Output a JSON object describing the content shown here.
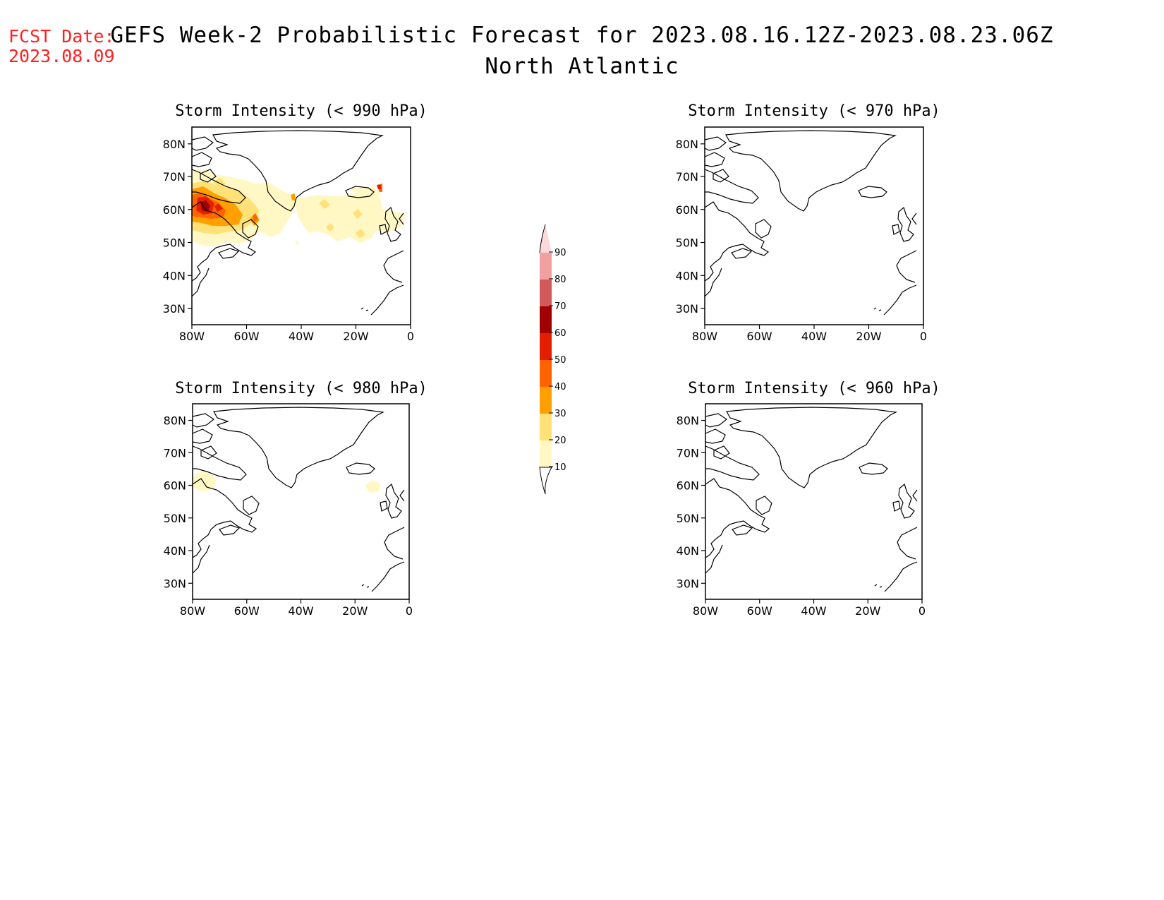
{
  "fcst_date": {
    "label": "FCST Date:",
    "value": "2023.08.09"
  },
  "title": {
    "line1": "GEFS Week-2 Probabilistic Forecast for 2023.08.16.12Z-2023.08.23.06Z",
    "line2": "North Atlantic"
  },
  "axes": {
    "lat_labels": [
      "80N",
      "70N",
      "60N",
      "50N",
      "40N",
      "30N"
    ],
    "lon_labels": [
      "80W",
      "60W",
      "40W",
      "20W",
      "0"
    ]
  },
  "panels": [
    {
      "id": "p990",
      "title": "Storm Intensity (< 990 hPa)"
    },
    {
      "id": "p980",
      "title": "Storm Intensity (< 980 hPa)"
    },
    {
      "id": "p970",
      "title": "Storm Intensity (< 970 hPa)"
    },
    {
      "id": "p960",
      "title": "Storm Intensity (< 960 hPa)"
    }
  ],
  "colorbar": {
    "labels": [
      "90",
      "80",
      "70",
      "60",
      "50",
      "40",
      "30",
      "20",
      "10"
    ],
    "colors": [
      "#fff8c4",
      "#ffe178",
      "#ffa000",
      "#ff6400",
      "#e61e00",
      "#a00000",
      "#d25a5a",
      "#f0a0a0",
      "#fcd8dc",
      "#ffeef0"
    ]
  }
}
